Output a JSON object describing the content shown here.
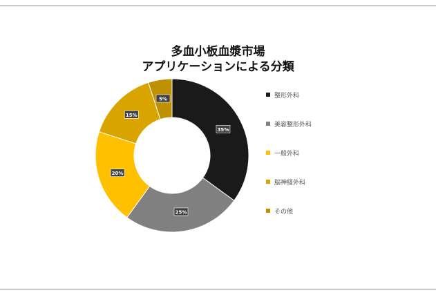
{
  "chart_data": {
    "type": "pie",
    "donut": true,
    "title_lines": [
      "多血小板血漿市場",
      "アプリケーションによる分類"
    ],
    "categories": [
      "整形外科",
      "美容整形外科",
      "一般外科",
      "脳神経外科",
      "その他"
    ],
    "values": [
      35,
      25,
      20,
      15,
      5
    ],
    "value_labels": [
      "35%",
      "25%",
      "20%",
      "15%",
      "5%"
    ],
    "colors": [
      "#1a1a1a",
      "#808080",
      "#ffc000",
      "#d9a300",
      "#bf9000"
    ],
    "legend_position": "right"
  }
}
